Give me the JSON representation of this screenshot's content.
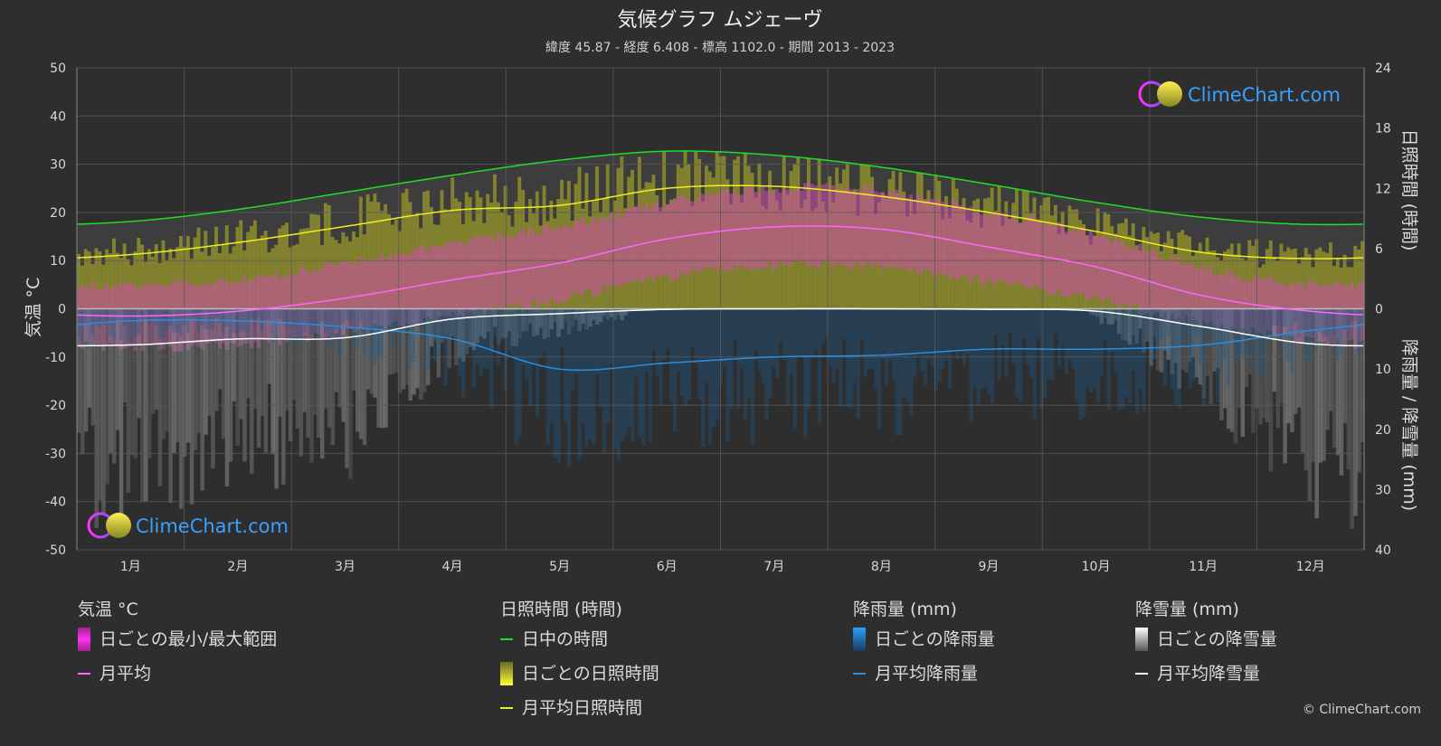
{
  "chart_data": {
    "type": "area",
    "title": "気候グラフ ムジェーヴ",
    "subtitle": "緯度 45.87 - 経度 6.408 - 標高 1102.0 - 期間 2013 - 2023",
    "categories": [
      "1月",
      "2月",
      "3月",
      "4月",
      "5月",
      "6月",
      "7月",
      "8月",
      "9月",
      "10月",
      "11月",
      "12月"
    ],
    "left_axis": {
      "label": "気温 °C",
      "range": [
        -50,
        50
      ],
      "ticks": [
        50,
        40,
        30,
        20,
        10,
        0,
        -10,
        -20,
        -30,
        -40,
        -50
      ]
    },
    "right_axis_top": {
      "label": "日照時間 (時間)",
      "range": [
        0,
        24
      ],
      "ticks": [
        24,
        18,
        12,
        6,
        0
      ]
    },
    "right_axis_bottom": {
      "label": "降雨量 / 降雪量 (mm)",
      "range": [
        0,
        40
      ],
      "ticks": [
        0,
        10,
        20,
        30,
        40
      ]
    },
    "series": [
      {
        "name": "日中の時間",
        "axis": "sunshine_hours",
        "values": [
          8.7,
          9.9,
          11.6,
          13.3,
          14.8,
          15.7,
          15.3,
          14.1,
          12.4,
          10.6,
          9.1,
          8.4
        ]
      },
      {
        "name": "月平均日照時間",
        "axis": "sunshine_hours",
        "values": [
          5.4,
          6.6,
          8.2,
          9.8,
          10.3,
          12.0,
          12.2,
          11.2,
          9.6,
          7.7,
          5.6,
          5.0
        ]
      },
      {
        "name": "月平均",
        "axis": "temperature_c",
        "values": [
          -1.5,
          -0.5,
          2.2,
          6.0,
          9.5,
          14.5,
          17.0,
          16.5,
          12.8,
          8.7,
          2.7,
          -0.5
        ]
      },
      {
        "name": "月平均降雨量",
        "axis": "precip_mm",
        "values": [
          2.0,
          2.0,
          3.0,
          5.0,
          10.0,
          9.0,
          8.0,
          7.7,
          6.7,
          6.7,
          6.0,
          3.6
        ]
      },
      {
        "name": "月平均降雪量",
        "axis": "precip_mm",
        "values": [
          6.0,
          5.0,
          4.8,
          1.7,
          0.8,
          0.1,
          0.0,
          0.0,
          0.1,
          0.4,
          3.0,
          5.8
        ]
      }
    ],
    "daily_temp_range_c": {
      "min": [
        -7,
        -6.5,
        -4,
        -0.5,
        3,
        7.5,
        10,
        9.5,
        6.5,
        3,
        -2,
        -5.5
      ],
      "max": [
        4,
        5,
        8.5,
        12.5,
        16,
        21,
        24,
        23.5,
        19,
        14.5,
        7.5,
        4
      ]
    },
    "grid": true
  },
  "legend": {
    "temp": {
      "title": "気温 °C",
      "range_label": "日ごとの最小/最大範囲",
      "avg_label": "月平均"
    },
    "sun": {
      "title": "日照時間 (時間)",
      "daylight_label": "日中の時間",
      "daily_label": "日ごとの日照時間",
      "avg_label": "月平均日照時間"
    },
    "rain": {
      "title": "降雨量 (mm)",
      "daily_label": "日ごとの降雨量",
      "avg_label": "月平均降雨量"
    },
    "snow": {
      "title": "降雪量 (mm)",
      "daily_label": "日ごとの降雪量",
      "avg_label": "月平均降雪量"
    }
  },
  "branding": {
    "logo_text": "ClimeChart.com",
    "copyright": "© ClimeChart.com"
  },
  "colors": {
    "daylight": "#22dd22",
    "sunshine_avg": "#eeee22",
    "sunshine_fill": "#9a9a2a",
    "temp_avg": "#ff66ff",
    "temp_fill": "#d24fb0",
    "rain": "#2a8fe0",
    "snow": "#ffffff",
    "grid": "#5a5a5a",
    "text": "#e0e0e0",
    "logo": "#3aa0ff"
  }
}
